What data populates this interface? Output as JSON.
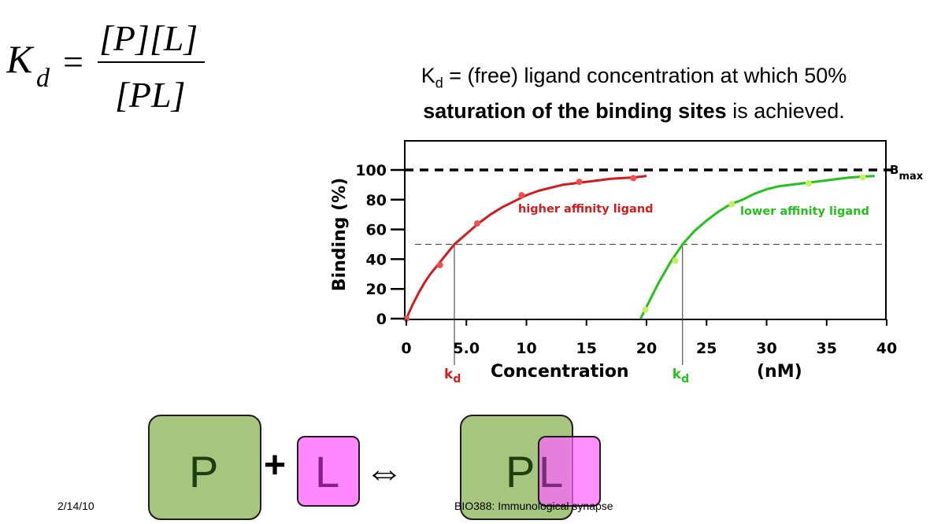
{
  "formula": {
    "lhs_symbol": "K",
    "lhs_subscript": "d",
    "equals": "=",
    "numerator": "[P][L]",
    "denominator": "[PL]"
  },
  "definition": {
    "kd_symbol": "K",
    "kd_subscript": "d",
    "line1_rest": " = (free) ligand concentration at which 50%",
    "line2_bold": "saturation of the binding sites",
    "line2_rest": " is achieved."
  },
  "chart_data": {
    "type": "line",
    "xlabel": "Concentration",
    "xunit": "(nM)",
    "ylabel": "Binding  (%)",
    "xlim": [
      0,
      40
    ],
    "ylim": [
      0,
      100
    ],
    "xticks": [
      0,
      5,
      10,
      15,
      20,
      25,
      30,
      35,
      40
    ],
    "xtick_labels": [
      "0",
      "5.0",
      "10",
      "15",
      "20",
      "25",
      "30",
      "35",
      "40"
    ],
    "yticks": [
      0,
      20,
      40,
      60,
      80,
      100
    ],
    "ytick_labels": [
      "0",
      "20",
      "40",
      "60",
      "80",
      "100"
    ],
    "bmax": {
      "value": 100,
      "label": "B",
      "label_sub": "max"
    },
    "half_saturation": 50,
    "series": [
      {
        "name": "higher affinity ligand",
        "color": "#d01c1c",
        "point_color": "#f05050",
        "kd": 4.0,
        "kd_label": "k",
        "kd_label_sub": "d",
        "x": [
          0,
          0.5,
          1.0,
          1.5,
          2.0,
          3.0,
          4.0,
          5.0,
          6.0,
          7.0,
          8.0,
          9.0,
          10.0,
          11.0,
          12.0,
          13.0,
          14.0,
          15.0,
          16.0,
          17.0,
          18.0,
          19.0,
          20.0
        ],
        "y": [
          0,
          9,
          17,
          24,
          30,
          40,
          50,
          57,
          64,
          70,
          75,
          79,
          83,
          86,
          88,
          90,
          91,
          92,
          93,
          94,
          94.5,
          95,
          96
        ],
        "markers_x": [
          0,
          2.8,
          5.9,
          9.6,
          14.4,
          18.9
        ],
        "markers_y": [
          0,
          36,
          64,
          83,
          92,
          94.5
        ]
      },
      {
        "name": "lower affinity ligand",
        "color": "#22c21a",
        "point_color": "#c6f060",
        "kd": 23.0,
        "kd_label": "k",
        "kd_label_sub": "d",
        "x": [
          19.5,
          20.0,
          20.5,
          21.0,
          21.5,
          22.0,
          22.5,
          23.0,
          24.0,
          25.0,
          26.0,
          27.0,
          28.0,
          29.0,
          30.0,
          31.0,
          32.0,
          33.0,
          34.0,
          35.0,
          36.0,
          37.0,
          38.0,
          39.0
        ],
        "y": [
          0,
          8,
          16,
          24,
          31,
          38,
          44,
          50,
          59,
          66,
          72,
          77,
          80,
          84,
          87,
          89,
          90,
          91,
          92,
          93,
          94,
          95,
          95.5,
          96
        ],
        "markers_x": [
          19.9,
          22.4,
          27.1,
          33.5,
          38.0
        ],
        "markers_y": [
          6,
          39,
          77,
          91,
          95
        ]
      }
    ]
  },
  "equation": {
    "p_label": "P",
    "plus": "+",
    "l_label": "L",
    "arrow": "⇔",
    "pl_p_label": "P",
    "pl_l_label": "L"
  },
  "footer": {
    "date": "2/14/10",
    "course": "BIO388: Immunological synapse"
  }
}
